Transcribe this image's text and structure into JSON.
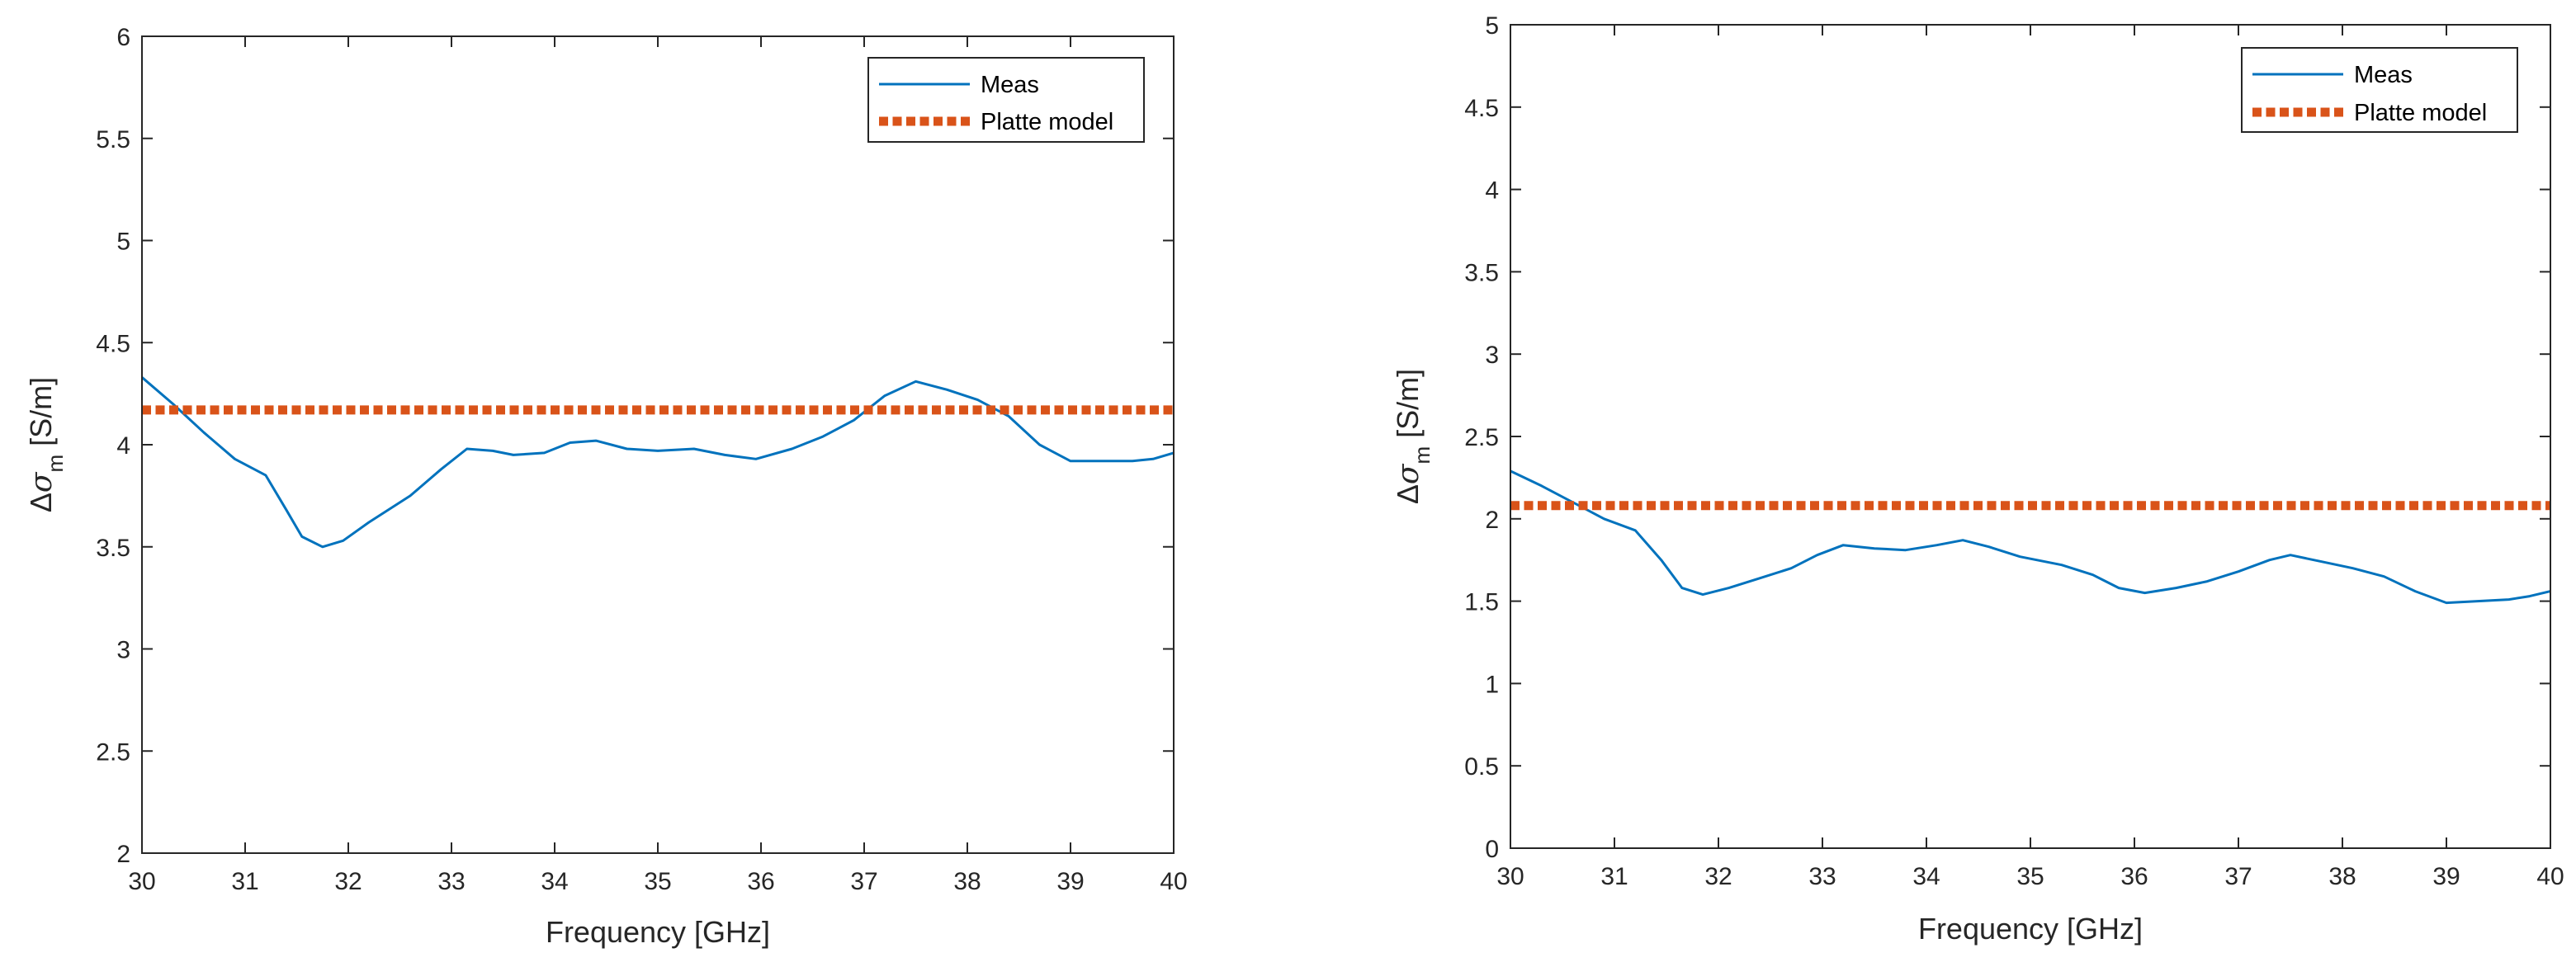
{
  "chart_data": [
    {
      "type": "line",
      "xlabel": "Frequency [GHz]",
      "ylabel_delta": "Δ",
      "ylabel_sigma": "σ",
      "ylabel_sub": "m",
      "ylabel_unit": "[S/m]",
      "xlim": [
        30,
        40
      ],
      "ylim": [
        2,
        6
      ],
      "xticks": [
        "30",
        "31",
        "32",
        "33",
        "34",
        "35",
        "36",
        "37",
        "38",
        "39",
        "40"
      ],
      "yticks": [
        "2",
        "2.5",
        "3",
        "3.5",
        "4",
        "4.5",
        "5",
        "5.5",
        "6"
      ],
      "series": [
        {
          "name": "Meas",
          "color": "#0072BD",
          "style": "solid",
          "x": [
            30,
            30.3,
            30.6,
            30.9,
            31.2,
            31.4,
            31.55,
            31.75,
            31.95,
            32.2,
            32.6,
            32.9,
            33.15,
            33.4,
            33.6,
            33.9,
            34.15,
            34.4,
            34.7,
            35.0,
            35.35,
            35.65,
            35.95,
            36.3,
            36.6,
            36.9,
            37.2,
            37.5,
            37.8,
            38.1,
            38.4,
            38.7,
            39.0,
            39.3,
            39.6,
            39.8,
            40.0
          ],
          "y": [
            4.33,
            4.2,
            4.06,
            3.93,
            3.85,
            3.68,
            3.55,
            3.5,
            3.53,
            3.62,
            3.75,
            3.88,
            3.98,
            3.97,
            3.95,
            3.96,
            4.01,
            4.02,
            3.98,
            3.97,
            3.98,
            3.95,
            3.93,
            3.98,
            4.04,
            4.12,
            4.24,
            4.31,
            4.27,
            4.22,
            4.14,
            4.0,
            3.92,
            3.92,
            3.92,
            3.93,
            3.96
          ]
        },
        {
          "name": "Platte model",
          "color": "#D95319",
          "style": "dotted",
          "x": [
            30,
            40
          ],
          "y": [
            4.17,
            4.17
          ]
        }
      ]
    },
    {
      "type": "line",
      "xlabel": "Frequency [GHz]",
      "ylabel_delta": "Δ",
      "ylabel_sigma": "σ",
      "ylabel_sub": "m",
      "ylabel_unit": "[S/m]",
      "xlim": [
        30,
        40
      ],
      "ylim": [
        0,
        5
      ],
      "xticks": [
        "30",
        "31",
        "32",
        "33",
        "34",
        "35",
        "36",
        "37",
        "38",
        "39",
        "40"
      ],
      "yticks": [
        "0",
        "0.5",
        "1",
        "1.5",
        "2",
        "2.5",
        "3",
        "3.5",
        "4",
        "4.5",
        "5"
      ],
      "series": [
        {
          "name": "Meas",
          "color": "#0072BD",
          "style": "solid",
          "x": [
            30,
            30.3,
            30.6,
            30.9,
            31.2,
            31.45,
            31.65,
            31.85,
            32.1,
            32.4,
            32.7,
            32.95,
            33.2,
            33.5,
            33.8,
            34.1,
            34.35,
            34.6,
            34.9,
            35.3,
            35.6,
            35.85,
            36.1,
            36.4,
            36.7,
            37.0,
            37.3,
            37.5,
            37.8,
            38.1,
            38.4,
            38.7,
            39.0,
            39.3,
            39.6,
            39.8,
            40.0
          ],
          "y": [
            2.29,
            2.2,
            2.1,
            2.0,
            1.93,
            1.75,
            1.58,
            1.54,
            1.58,
            1.64,
            1.7,
            1.78,
            1.84,
            1.82,
            1.81,
            1.84,
            1.87,
            1.83,
            1.77,
            1.72,
            1.66,
            1.58,
            1.55,
            1.58,
            1.62,
            1.68,
            1.75,
            1.78,
            1.74,
            1.7,
            1.65,
            1.56,
            1.49,
            1.5,
            1.51,
            1.53,
            1.56
          ]
        },
        {
          "name": "Platte model",
          "color": "#D95319",
          "style": "dotted",
          "x": [
            30,
            40
          ],
          "y": [
            2.08,
            2.08
          ]
        }
      ]
    }
  ]
}
